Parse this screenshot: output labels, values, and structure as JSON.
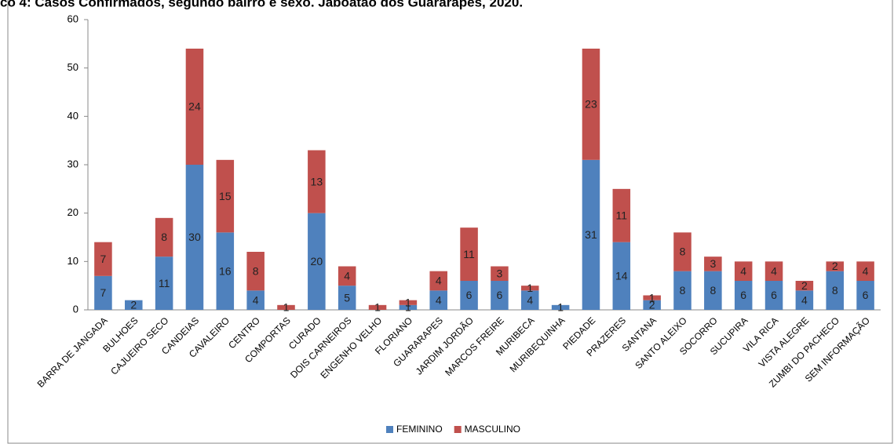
{
  "chart_data": {
    "type": "stacked_bar",
    "title": "co 4: Casos Confirmados, segundo bairro e sexo. Jaboatão dos Guararapes, 2020.",
    "categories": [
      "BARRA DE JANGADA",
      "BULHOES",
      "CAJUEIRO SECO",
      "CANDEIAS",
      "CAVALEIRO",
      "CENTRO",
      "COMPORTAS",
      "CURADO",
      "DOIS CARNEIROS",
      "ENGENHO VELHO",
      "FLORIANO",
      "GUARARAPES",
      "JARDIM JORDÃO",
      "MARCOS FREIRE",
      "MURIBECA",
      "MURIBEQUINHA",
      "PIEDADE",
      "PRAZERES",
      "SANTANA",
      "SANTO ALEIXO",
      "SOCORRO",
      "SUCUPIRA",
      "VILA RICA",
      "VISTA ALEGRE",
      "ZUMBI DO PACHECO",
      "SEM INFORMAÇÃO"
    ],
    "series": [
      {
        "name": "FEMININO",
        "color": "#4f81bd",
        "values": [
          7,
          2,
          11,
          30,
          16,
          4,
          null,
          20,
          5,
          null,
          1,
          4,
          6,
          6,
          4,
          1,
          31,
          14,
          2,
          8,
          8,
          6,
          6,
          4,
          8,
          6
        ]
      },
      {
        "name": "MASCULINO",
        "color": "#c0504d",
        "values": [
          7,
          null,
          8,
          24,
          15,
          8,
          1,
          13,
          4,
          1,
          1,
          4,
          11,
          3,
          1,
          null,
          23,
          11,
          1,
          8,
          3,
          4,
          4,
          2,
          2,
          4
        ]
      }
    ],
    "ylim": [
      0,
      60
    ],
    "yticks": [
      0,
      10,
      20,
      30,
      40,
      50,
      60
    ],
    "legend": "bottom"
  }
}
